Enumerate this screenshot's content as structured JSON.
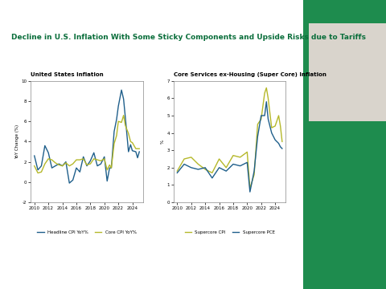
{
  "title": "Decline in U.S. Inflation With Some Sticky Components and Upside Risks due to Tariffs",
  "chart_data": [
    {
      "type": "line",
      "title": "United States Inflation",
      "y_label": "YoY Change (%)",
      "x": [
        2010,
        2010.5,
        2011,
        2011.5,
        2012,
        2012.5,
        2013,
        2013.5,
        2014,
        2014.5,
        2015,
        2015.5,
        2016,
        2016.5,
        2017,
        2017.5,
        2018,
        2018.5,
        2019,
        2019.5,
        2020,
        2020.4,
        2020.75,
        2021,
        2021.4,
        2021.75,
        2022,
        2022.45,
        2022.75,
        2023,
        2023.45,
        2023.75,
        2024,
        2024.5,
        2024.75,
        2025
      ],
      "series": [
        {
          "name": "Headline CPI YoY%",
          "color": "#1f5f8b",
          "values": [
            2.6,
            1.2,
            1.6,
            3.6,
            2.9,
            1.4,
            1.6,
            1.8,
            1.6,
            2.0,
            -0.1,
            0.2,
            1.4,
            1.0,
            2.5,
            1.6,
            2.1,
            2.9,
            1.6,
            1.8,
            2.5,
            0.1,
            1.4,
            1.4,
            5.0,
            6.2,
            7.5,
            9.1,
            8.2,
            6.4,
            3.0,
            3.7,
            3.1,
            3.0,
            2.4,
            3.0
          ]
        },
        {
          "name": "Core CPI YoY%",
          "color": "#b5b82a",
          "values": [
            1.6,
            0.9,
            1.0,
            1.8,
            2.3,
            2.2,
            1.9,
            1.7,
            1.6,
            1.9,
            1.6,
            1.8,
            2.2,
            2.2,
            2.3,
            1.7,
            1.8,
            2.3,
            2.2,
            2.1,
            2.3,
            1.2,
            1.7,
            1.4,
            3.8,
            4.6,
            6.0,
            5.9,
            6.6,
            5.6,
            4.8,
            4.0,
            3.9,
            3.3,
            3.3,
            3.3
          ]
        }
      ],
      "xlim": [
        2009.5,
        2025.5
      ],
      "xticks": [
        2010,
        2012,
        2014,
        2016,
        2018,
        2020,
        2022,
        2024
      ],
      "ylim": [
        -2,
        10
      ],
      "yticks": [
        -2,
        0,
        2,
        4,
        6,
        8,
        10
      ],
      "legend": "lower center"
    },
    {
      "type": "line",
      "title": "Core Services ex-Housing (Super Core) Inflation",
      "y_label": "%",
      "x": [
        2010,
        2011,
        2012,
        2013,
        2014,
        2015,
        2016,
        2017,
        2018,
        2019,
        2020,
        2020.4,
        2021,
        2021.5,
        2022,
        2022.5,
        2022.75,
        2023,
        2023.5,
        2024,
        2024.5,
        2024.75,
        2025
      ],
      "series": [
        {
          "name": "Supercore CPI",
          "color": "#b5b82a",
          "values": [
            1.8,
            2.5,
            2.6,
            2.2,
            1.9,
            1.7,
            2.5,
            2.0,
            2.7,
            2.6,
            2.9,
            0.8,
            1.6,
            4.5,
            4.8,
            6.3,
            6.6,
            6.0,
            4.3,
            4.4,
            5.0,
            4.4,
            3.5
          ]
        },
        {
          "name": "Supercore PCE",
          "color": "#1f5f8b",
          "values": [
            1.7,
            2.2,
            2.0,
            1.9,
            2.0,
            1.4,
            2.0,
            1.8,
            2.2,
            2.1,
            2.3,
            0.6,
            1.8,
            3.8,
            5.0,
            5.0,
            5.8,
            4.8,
            4.0,
            3.6,
            3.4,
            3.2,
            3.1
          ]
        }
      ],
      "xlim": [
        2009.5,
        2025.5
      ],
      "xticks": [
        2010,
        2012,
        2014,
        2016,
        2018,
        2020,
        2022,
        2024
      ],
      "ylim": [
        0,
        7
      ],
      "yticks": [
        0,
        1,
        2,
        3,
        4,
        5,
        6,
        7
      ],
      "legend": "lower center"
    }
  ]
}
